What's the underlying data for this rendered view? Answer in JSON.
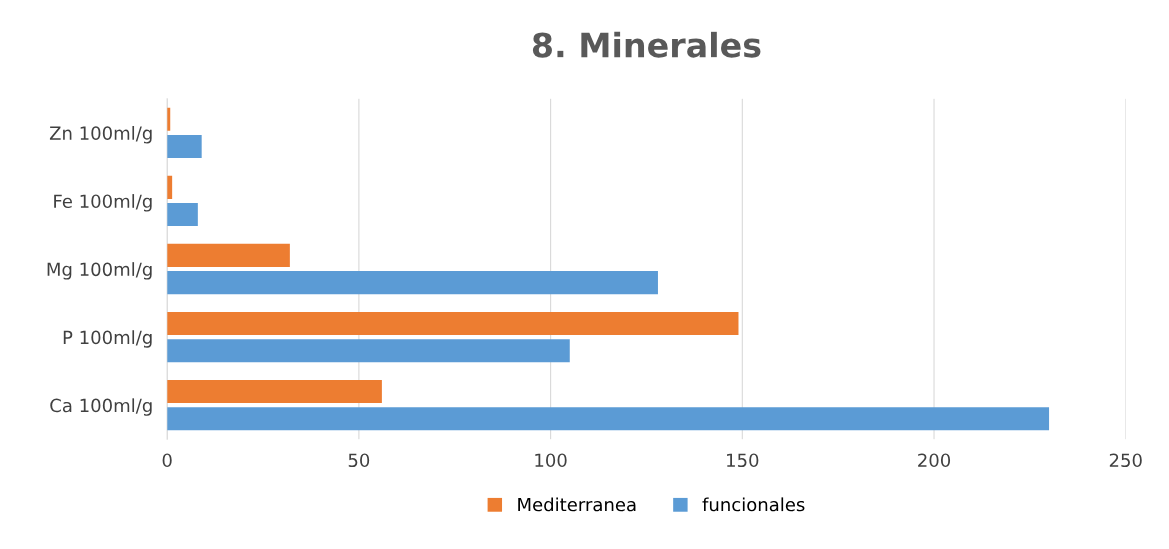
{
  "chart_data": {
    "type": "bar",
    "orientation": "horizontal",
    "title": "8. Minerales",
    "categories": [
      "Zn 100ml/g",
      "Fe 100ml/g",
      "Mg 100ml/g",
      "P 100ml/g",
      "Ca 100ml/g"
    ],
    "series": [
      {
        "name": "Mediterranea",
        "color": "#ed7d31",
        "values": [
          0.8,
          1.3,
          32,
          149,
          56
        ]
      },
      {
        "name": "funcionales",
        "color": "#5b9bd5",
        "values": [
          9,
          8,
          128,
          105,
          230
        ]
      }
    ],
    "xlim": [
      0,
      250
    ],
    "xticks": [
      0,
      50,
      100,
      150,
      200,
      250
    ],
    "grid": "x",
    "legend": "bottom"
  }
}
